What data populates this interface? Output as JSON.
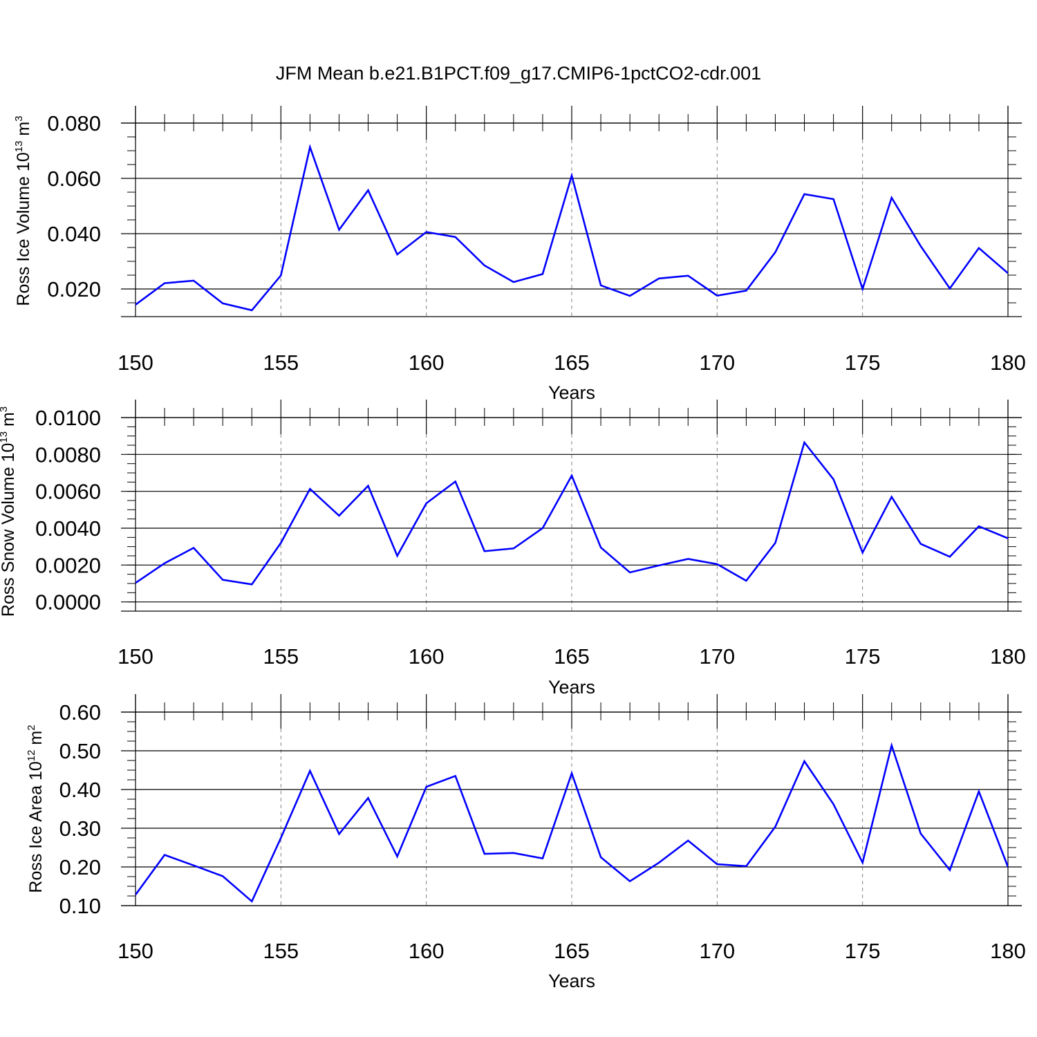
{
  "title": "JFM Mean b.e21.B1PCT.f09_g17.CMIP6-1pctCO2-cdr.001",
  "chart_data": [
    {
      "type": "line",
      "ylabel": {
        "pre": "Ross Ice Volume 10",
        "sup": "13",
        "mid": " m",
        "sup2": "3"
      },
      "xlabel": "Years",
      "xlim": [
        150,
        180
      ],
      "ylim": [
        0.01,
        0.08
      ],
      "xticks": [
        "150",
        "155",
        "160",
        "165",
        "170",
        "175",
        "180"
      ],
      "yticks": [
        "0.020",
        "0.040",
        "0.060",
        "0.080"
      ],
      "x": [
        150,
        151,
        152,
        153,
        154,
        155,
        156,
        157,
        158,
        159,
        160,
        161,
        162,
        163,
        164,
        165,
        166,
        167,
        168,
        169,
        170,
        171,
        172,
        173,
        174,
        175,
        176,
        177,
        178,
        179,
        180
      ],
      "values": [
        0.0143,
        0.0221,
        0.023,
        0.0148,
        0.0123,
        0.0249,
        0.0713,
        0.0414,
        0.0557,
        0.0325,
        0.0406,
        0.0388,
        0.0285,
        0.0225,
        0.0254,
        0.061,
        0.0213,
        0.0175,
        0.0238,
        0.0248,
        0.0176,
        0.0194,
        0.0333,
        0.0543,
        0.0525,
        0.02,
        0.053,
        0.0355,
        0.0202,
        0.0348,
        0.0257
      ],
      "color": "#0000ff"
    },
    {
      "type": "line",
      "ylabel": {
        "pre": "Ross Snow Volume 10",
        "sup": "13",
        "mid": " m",
        "sup2": "3"
      },
      "xlabel": "Years",
      "xlim": [
        150,
        180
      ],
      "ylim": [
        -0.0005,
        0.01
      ],
      "xticks": [
        "150",
        "155",
        "160",
        "165",
        "170",
        "175",
        "180"
      ],
      "yticks": [
        "0.0000",
        "0.0020",
        "0.0040",
        "0.0060",
        "0.0080",
        "0.0100"
      ],
      "x": [
        150,
        151,
        152,
        153,
        154,
        155,
        156,
        157,
        158,
        159,
        160,
        161,
        162,
        163,
        164,
        165,
        166,
        167,
        168,
        169,
        170,
        171,
        172,
        173,
        174,
        175,
        176,
        177,
        178,
        179,
        180
      ],
      "values": [
        0.00103,
        0.0021,
        0.00293,
        0.0012,
        0.00095,
        0.0032,
        0.00613,
        0.00468,
        0.0063,
        0.0025,
        0.00535,
        0.00653,
        0.00275,
        0.0029,
        0.004,
        0.00685,
        0.00295,
        0.0016,
        0.00198,
        0.00233,
        0.00205,
        0.00115,
        0.0032,
        0.00865,
        0.00665,
        0.00268,
        0.0057,
        0.00315,
        0.00245,
        0.0041,
        0.00345
      ],
      "color": "#0000ff"
    },
    {
      "type": "line",
      "ylabel": {
        "pre": "Ross Ice Area 10",
        "sup": "12",
        "mid": " m",
        "sup2": "2"
      },
      "xlabel": "Years",
      "xlim": [
        150,
        180
      ],
      "ylim": [
        0.1,
        0.6
      ],
      "xticks": [
        "150",
        "155",
        "160",
        "165",
        "170",
        "175",
        "180"
      ],
      "yticks": [
        "0.10",
        "0.20",
        "0.30",
        "0.40",
        "0.50",
        "0.60"
      ],
      "x": [
        150,
        151,
        152,
        153,
        154,
        155,
        156,
        157,
        158,
        159,
        160,
        161,
        162,
        163,
        164,
        165,
        166,
        167,
        168,
        169,
        170,
        171,
        172,
        173,
        174,
        175,
        176,
        177,
        178,
        179,
        180
      ],
      "values": [
        0.128,
        0.231,
        0.204,
        0.176,
        0.111,
        0.275,
        0.448,
        0.285,
        0.378,
        0.227,
        0.407,
        0.435,
        0.234,
        0.236,
        0.222,
        0.442,
        0.225,
        0.163,
        0.211,
        0.268,
        0.207,
        0.202,
        0.304,
        0.473,
        0.362,
        0.211,
        0.514,
        0.286,
        0.192,
        0.395,
        0.2
      ],
      "color": "#0000ff"
    }
  ]
}
